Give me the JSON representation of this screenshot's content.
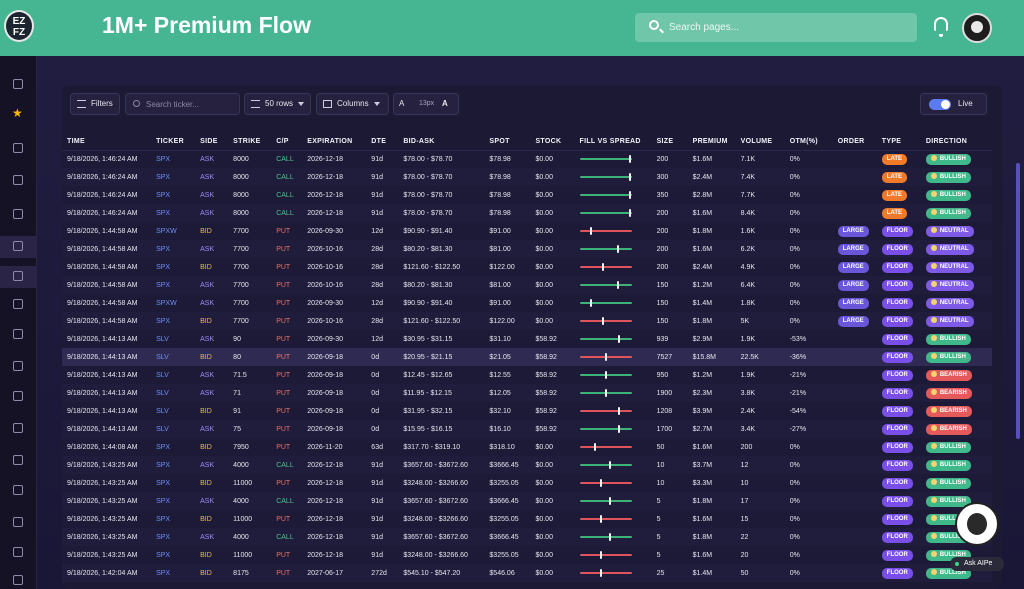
{
  "app": {
    "logo_text": "EZ FZ",
    "title": "1M+ Premium Flow",
    "search_placeholder": "Search pages..."
  },
  "icons": {
    "search": "search-icon",
    "bell": "bell-icon",
    "avatar": "monkey-avatar"
  },
  "sidebar": {
    "items": [
      "home",
      "star",
      "sparkle",
      "bell",
      "hierarchy",
      "layers",
      "redirect",
      "bar-chart",
      "trend-down",
      "drop",
      "gauge",
      "briefcase",
      "calendar",
      "plug",
      "document",
      "folder",
      "building"
    ]
  },
  "toolbar": {
    "filters_label": "Filters",
    "ticker_placeholder": "Search ticker...",
    "rows_label": "50 rows",
    "columns_label": "Columns",
    "font_small": "A",
    "font_size": "13px",
    "font_big": "A",
    "live_label": "Live"
  },
  "table": {
    "headers": [
      "TIME",
      "TICKER",
      "SIDE",
      "STRIKE",
      "C/P",
      "EXPIRATION",
      "DTE",
      "BID-ASK",
      "SPOT",
      "STOCK",
      "FILL VS SPREAD",
      "SIZE",
      "PREMIUM",
      "VOLUME",
      "OTM(%)",
      "ORDER",
      "TYPE",
      "DIRECTION"
    ],
    "rows": [
      {
        "time": "9/18/2026, 1:46:24 AM",
        "ticker": "SPX",
        "side": "ASK",
        "strike": "8000",
        "cp": "CALL",
        "exp": "2026-12-18",
        "dte": "91d",
        "bidask": "$78.00 - $78.70",
        "spot": "$78.98",
        "stock": "$0.00",
        "fill": 0.98,
        "size": "200",
        "premium": "$1.6M",
        "volume": "7.1K",
        "otm": "0%",
        "order": "",
        "type": "LATE",
        "direction": "BULLISH"
      },
      {
        "time": "9/18/2026, 1:46:24 AM",
        "ticker": "SPX",
        "side": "ASK",
        "strike": "8000",
        "cp": "CALL",
        "exp": "2026-12-18",
        "dte": "91d",
        "bidask": "$78.00 - $78.70",
        "spot": "$78.98",
        "stock": "$0.00",
        "fill": 0.98,
        "size": "300",
        "premium": "$2.4M",
        "volume": "7.4K",
        "otm": "0%",
        "order": "",
        "type": "LATE",
        "direction": "BULLISH"
      },
      {
        "time": "9/18/2026, 1:46:24 AM",
        "ticker": "SPX",
        "side": "ASK",
        "strike": "8000",
        "cp": "CALL",
        "exp": "2026-12-18",
        "dte": "91d",
        "bidask": "$78.00 - $78.70",
        "spot": "$78.98",
        "stock": "$0.00",
        "fill": 0.98,
        "size": "350",
        "premium": "$2.8M",
        "volume": "7.7K",
        "otm": "0%",
        "order": "",
        "type": "LATE",
        "direction": "BULLISH"
      },
      {
        "time": "9/18/2026, 1:46:24 AM",
        "ticker": "SPX",
        "side": "ASK",
        "strike": "8000",
        "cp": "CALL",
        "exp": "2026-12-18",
        "dte": "91d",
        "bidask": "$78.00 - $78.70",
        "spot": "$78.98",
        "stock": "$0.00",
        "fill": 0.98,
        "size": "200",
        "premium": "$1.6M",
        "volume": "8.4K",
        "otm": "0%",
        "order": "",
        "type": "LATE",
        "direction": "BULLISH"
      },
      {
        "time": "9/18/2026, 1:44:58 AM",
        "ticker": "SPXW",
        "side": "BID",
        "strike": "7700",
        "cp": "PUT",
        "exp": "2026-09-30",
        "dte": "12d",
        "bidask": "$90.90 - $91.40",
        "spot": "$91.00",
        "stock": "$0.00",
        "fill": 0.2,
        "size": "200",
        "premium": "$1.8M",
        "volume": "1.6K",
        "otm": "0%",
        "order": "LARGE",
        "type": "FLOOR",
        "direction": "NEUTRAL"
      },
      {
        "time": "9/18/2026, 1:44:58 AM",
        "ticker": "SPX",
        "side": "ASK",
        "strike": "7700",
        "cp": "PUT",
        "exp": "2026-10-16",
        "dte": "28d",
        "bidask": "$80.20 - $81.30",
        "spot": "$81.00",
        "stock": "$0.00",
        "fill": 0.73,
        "size": "200",
        "premium": "$1.6M",
        "volume": "6.2K",
        "otm": "0%",
        "order": "LARGE",
        "type": "FLOOR",
        "direction": "NEUTRAL"
      },
      {
        "time": "9/18/2026, 1:44:58 AM",
        "ticker": "SPX",
        "side": "BID",
        "strike": "7700",
        "cp": "PUT",
        "exp": "2026-10-16",
        "dte": "28d",
        "bidask": "$121.60 - $122.50",
        "spot": "$122.00",
        "stock": "$0.00",
        "fill": 0.44,
        "size": "200",
        "premium": "$2.4M",
        "volume": "4.9K",
        "otm": "0%",
        "order": "LARGE",
        "type": "FLOOR",
        "direction": "NEUTRAL"
      },
      {
        "time": "9/18/2026, 1:44:58 AM",
        "ticker": "SPX",
        "side": "ASK",
        "strike": "7700",
        "cp": "PUT",
        "exp": "2026-10-16",
        "dte": "28d",
        "bidask": "$80.20 - $81.30",
        "spot": "$81.00",
        "stock": "$0.00",
        "fill": 0.73,
        "size": "150",
        "premium": "$1.2M",
        "volume": "6.4K",
        "otm": "0%",
        "order": "LARGE",
        "type": "FLOOR",
        "direction": "NEUTRAL"
      },
      {
        "time": "9/18/2026, 1:44:58 AM",
        "ticker": "SPXW",
        "side": "ASK",
        "strike": "7700",
        "cp": "PUT",
        "exp": "2026-09-30",
        "dte": "12d",
        "bidask": "$90.90 - $91.40",
        "spot": "$91.00",
        "stock": "$0.00",
        "fill": 0.2,
        "size": "150",
        "premium": "$1.4M",
        "volume": "1.8K",
        "otm": "0%",
        "order": "LARGE",
        "type": "FLOOR",
        "direction": "NEUTRAL"
      },
      {
        "time": "9/18/2026, 1:44:58 AM",
        "ticker": "SPX",
        "side": "BID",
        "strike": "7700",
        "cp": "PUT",
        "exp": "2026-10-16",
        "dte": "28d",
        "bidask": "$121.60 - $122.50",
        "spot": "$122.00",
        "stock": "$0.00",
        "fill": 0.44,
        "size": "150",
        "premium": "$1.8M",
        "volume": "5K",
        "otm": "0%",
        "order": "LARGE",
        "type": "FLOOR",
        "direction": "NEUTRAL"
      },
      {
        "time": "9/18/2026, 1:44:13 AM",
        "ticker": "SLV",
        "side": "ASK",
        "strike": "90",
        "cp": "PUT",
        "exp": "2026-09-30",
        "dte": "12d",
        "bidask": "$30.95 - $31.15",
        "spot": "$31.10",
        "stock": "$58.92",
        "fill": 0.75,
        "size": "939",
        "premium": "$2.9M",
        "volume": "1.9K",
        "otm": "-53%",
        "order": "",
        "type": "FLOOR",
        "direction": "BULLISH"
      },
      {
        "time": "9/18/2026, 1:44:13 AM",
        "ticker": "SLV",
        "side": "BID",
        "strike": "80",
        "cp": "PUT",
        "exp": "2026-09-18",
        "dte": "0d",
        "bidask": "$20.95 - $21.15",
        "spot": "$21.05",
        "stock": "$58.92",
        "fill": 0.5,
        "size": "7527",
        "premium": "$15.8M",
        "volume": "22.5K",
        "otm": "-36%",
        "order": "",
        "type": "FLOOR",
        "direction": "BULLISH"
      },
      {
        "time": "9/18/2026, 1:44:13 AM",
        "ticker": "SLV",
        "side": "ASK",
        "strike": "71.5",
        "cp": "PUT",
        "exp": "2026-09-18",
        "dte": "0d",
        "bidask": "$12.45 - $12.65",
        "spot": "$12.55",
        "stock": "$58.92",
        "fill": 0.5,
        "size": "950",
        "premium": "$1.2M",
        "volume": "1.9K",
        "otm": "-21%",
        "order": "",
        "type": "FLOOR",
        "direction": "BEARISH"
      },
      {
        "time": "9/18/2026, 1:44:13 AM",
        "ticker": "SLV",
        "side": "ASK",
        "strike": "71",
        "cp": "PUT",
        "exp": "2026-09-18",
        "dte": "0d",
        "bidask": "$11.95 - $12.15",
        "spot": "$12.05",
        "stock": "$58.92",
        "fill": 0.5,
        "size": "1900",
        "premium": "$2.3M",
        "volume": "3.8K",
        "otm": "-21%",
        "order": "",
        "type": "FLOOR",
        "direction": "BEARISH"
      },
      {
        "time": "9/18/2026, 1:44:13 AM",
        "ticker": "SLV",
        "side": "BID",
        "strike": "91",
        "cp": "PUT",
        "exp": "2026-09-18",
        "dte": "0d",
        "bidask": "$31.95 - $32.15",
        "spot": "$32.10",
        "stock": "$58.92",
        "fill": 0.75,
        "size": "1208",
        "premium": "$3.9M",
        "volume": "2.4K",
        "otm": "-54%",
        "order": "",
        "type": "FLOOR",
        "direction": "BEARISH"
      },
      {
        "time": "9/18/2026, 1:44:13 AM",
        "ticker": "SLV",
        "side": "ASK",
        "strike": "75",
        "cp": "PUT",
        "exp": "2026-09-18",
        "dte": "0d",
        "bidask": "$15.95 - $16.15",
        "spot": "$16.10",
        "stock": "$58.92",
        "fill": 0.75,
        "size": "1700",
        "premium": "$2.7M",
        "volume": "3.4K",
        "otm": "-27%",
        "order": "",
        "type": "FLOOR",
        "direction": "BEARISH"
      },
      {
        "time": "9/18/2026, 1:44:08 AM",
        "ticker": "SPX",
        "side": "BID",
        "strike": "7950",
        "cp": "PUT",
        "exp": "2026-11-20",
        "dte": "63d",
        "bidask": "$317.70 - $319.10",
        "spot": "$318.10",
        "stock": "$0.00",
        "fill": 0.29,
        "size": "50",
        "premium": "$1.6M",
        "volume": "200",
        "otm": "0%",
        "order": "",
        "type": "FLOOR",
        "direction": "BULLISH"
      },
      {
        "time": "9/18/2026, 1:43:25 AM",
        "ticker": "SPX",
        "side": "ASK",
        "strike": "4000",
        "cp": "CALL",
        "exp": "2026-12-18",
        "dte": "91d",
        "bidask": "$3657.60 - $3672.60",
        "spot": "$3666.45",
        "stock": "$0.00",
        "fill": 0.58,
        "size": "10",
        "premium": "$3.7M",
        "volume": "12",
        "otm": "0%",
        "order": "",
        "type": "FLOOR",
        "direction": "BULLISH"
      },
      {
        "time": "9/18/2026, 1:43:25 AM",
        "ticker": "SPX",
        "side": "BID",
        "strike": "11000",
        "cp": "PUT",
        "exp": "2026-12-18",
        "dte": "91d",
        "bidask": "$3248.00 - $3266.60",
        "spot": "$3255.05",
        "stock": "$0.00",
        "fill": 0.4,
        "size": "10",
        "premium": "$3.3M",
        "volume": "10",
        "otm": "0%",
        "order": "",
        "type": "FLOOR",
        "direction": "BULLISH"
      },
      {
        "time": "9/18/2026, 1:43:25 AM",
        "ticker": "SPX",
        "side": "ASK",
        "strike": "4000",
        "cp": "CALL",
        "exp": "2026-12-18",
        "dte": "91d",
        "bidask": "$3657.60 - $3672.60",
        "spot": "$3666.45",
        "stock": "$0.00",
        "fill": 0.58,
        "size": "5",
        "premium": "$1.8M",
        "volume": "17",
        "otm": "0%",
        "order": "",
        "type": "FLOOR",
        "direction": "BULLISH"
      },
      {
        "time": "9/18/2026, 1:43:25 AM",
        "ticker": "SPX",
        "side": "BID",
        "strike": "11000",
        "cp": "PUT",
        "exp": "2026-12-18",
        "dte": "91d",
        "bidask": "$3248.00 - $3266.60",
        "spot": "$3255.05",
        "stock": "$0.00",
        "fill": 0.4,
        "size": "5",
        "premium": "$1.6M",
        "volume": "15",
        "otm": "0%",
        "order": "",
        "type": "FLOOR",
        "direction": "BULLISH"
      },
      {
        "time": "9/18/2026, 1:43:25 AM",
        "ticker": "SPX",
        "side": "ASK",
        "strike": "4000",
        "cp": "CALL",
        "exp": "2026-12-18",
        "dte": "91d",
        "bidask": "$3657.60 - $3672.60",
        "spot": "$3666.45",
        "stock": "$0.00",
        "fill": 0.58,
        "size": "5",
        "premium": "$1.8M",
        "volume": "22",
        "otm": "0%",
        "order": "",
        "type": "FLOOR",
        "direction": "BULLISH"
      },
      {
        "time": "9/18/2026, 1:43:25 AM",
        "ticker": "SPX",
        "side": "BID",
        "strike": "11000",
        "cp": "PUT",
        "exp": "2026-12-18",
        "dte": "91d",
        "bidask": "$3248.00 - $3266.60",
        "spot": "$3255.05",
        "stock": "$0.00",
        "fill": 0.4,
        "size": "5",
        "premium": "$1.6M",
        "volume": "20",
        "otm": "0%",
        "order": "",
        "type": "FLOOR",
        "direction": "BULLISH"
      },
      {
        "time": "9/18/2026, 1:42:04 AM",
        "ticker": "SPX",
        "side": "BID",
        "strike": "8175",
        "cp": "PUT",
        "exp": "2027-06-17",
        "dte": "272d",
        "bidask": "$545.10 - $547.20",
        "spot": "$546.06",
        "stock": "$0.00",
        "fill": 0.4,
        "size": "25",
        "premium": "$1.4M",
        "volume": "50",
        "otm": "0%",
        "order": "",
        "type": "FLOOR",
        "direction": "BULLISH"
      }
    ],
    "highlighted_row": 11
  },
  "ask_ai": {
    "label": "Ask AIPe"
  },
  "colors": {
    "topbar": "#46b592",
    "bg": "#1a1733",
    "bullish": "#3fb98a",
    "bearish": "#e45a5a",
    "neutral": "#7e5ae6",
    "late": "#ef7a2a",
    "floor": "#7a4fe8"
  }
}
